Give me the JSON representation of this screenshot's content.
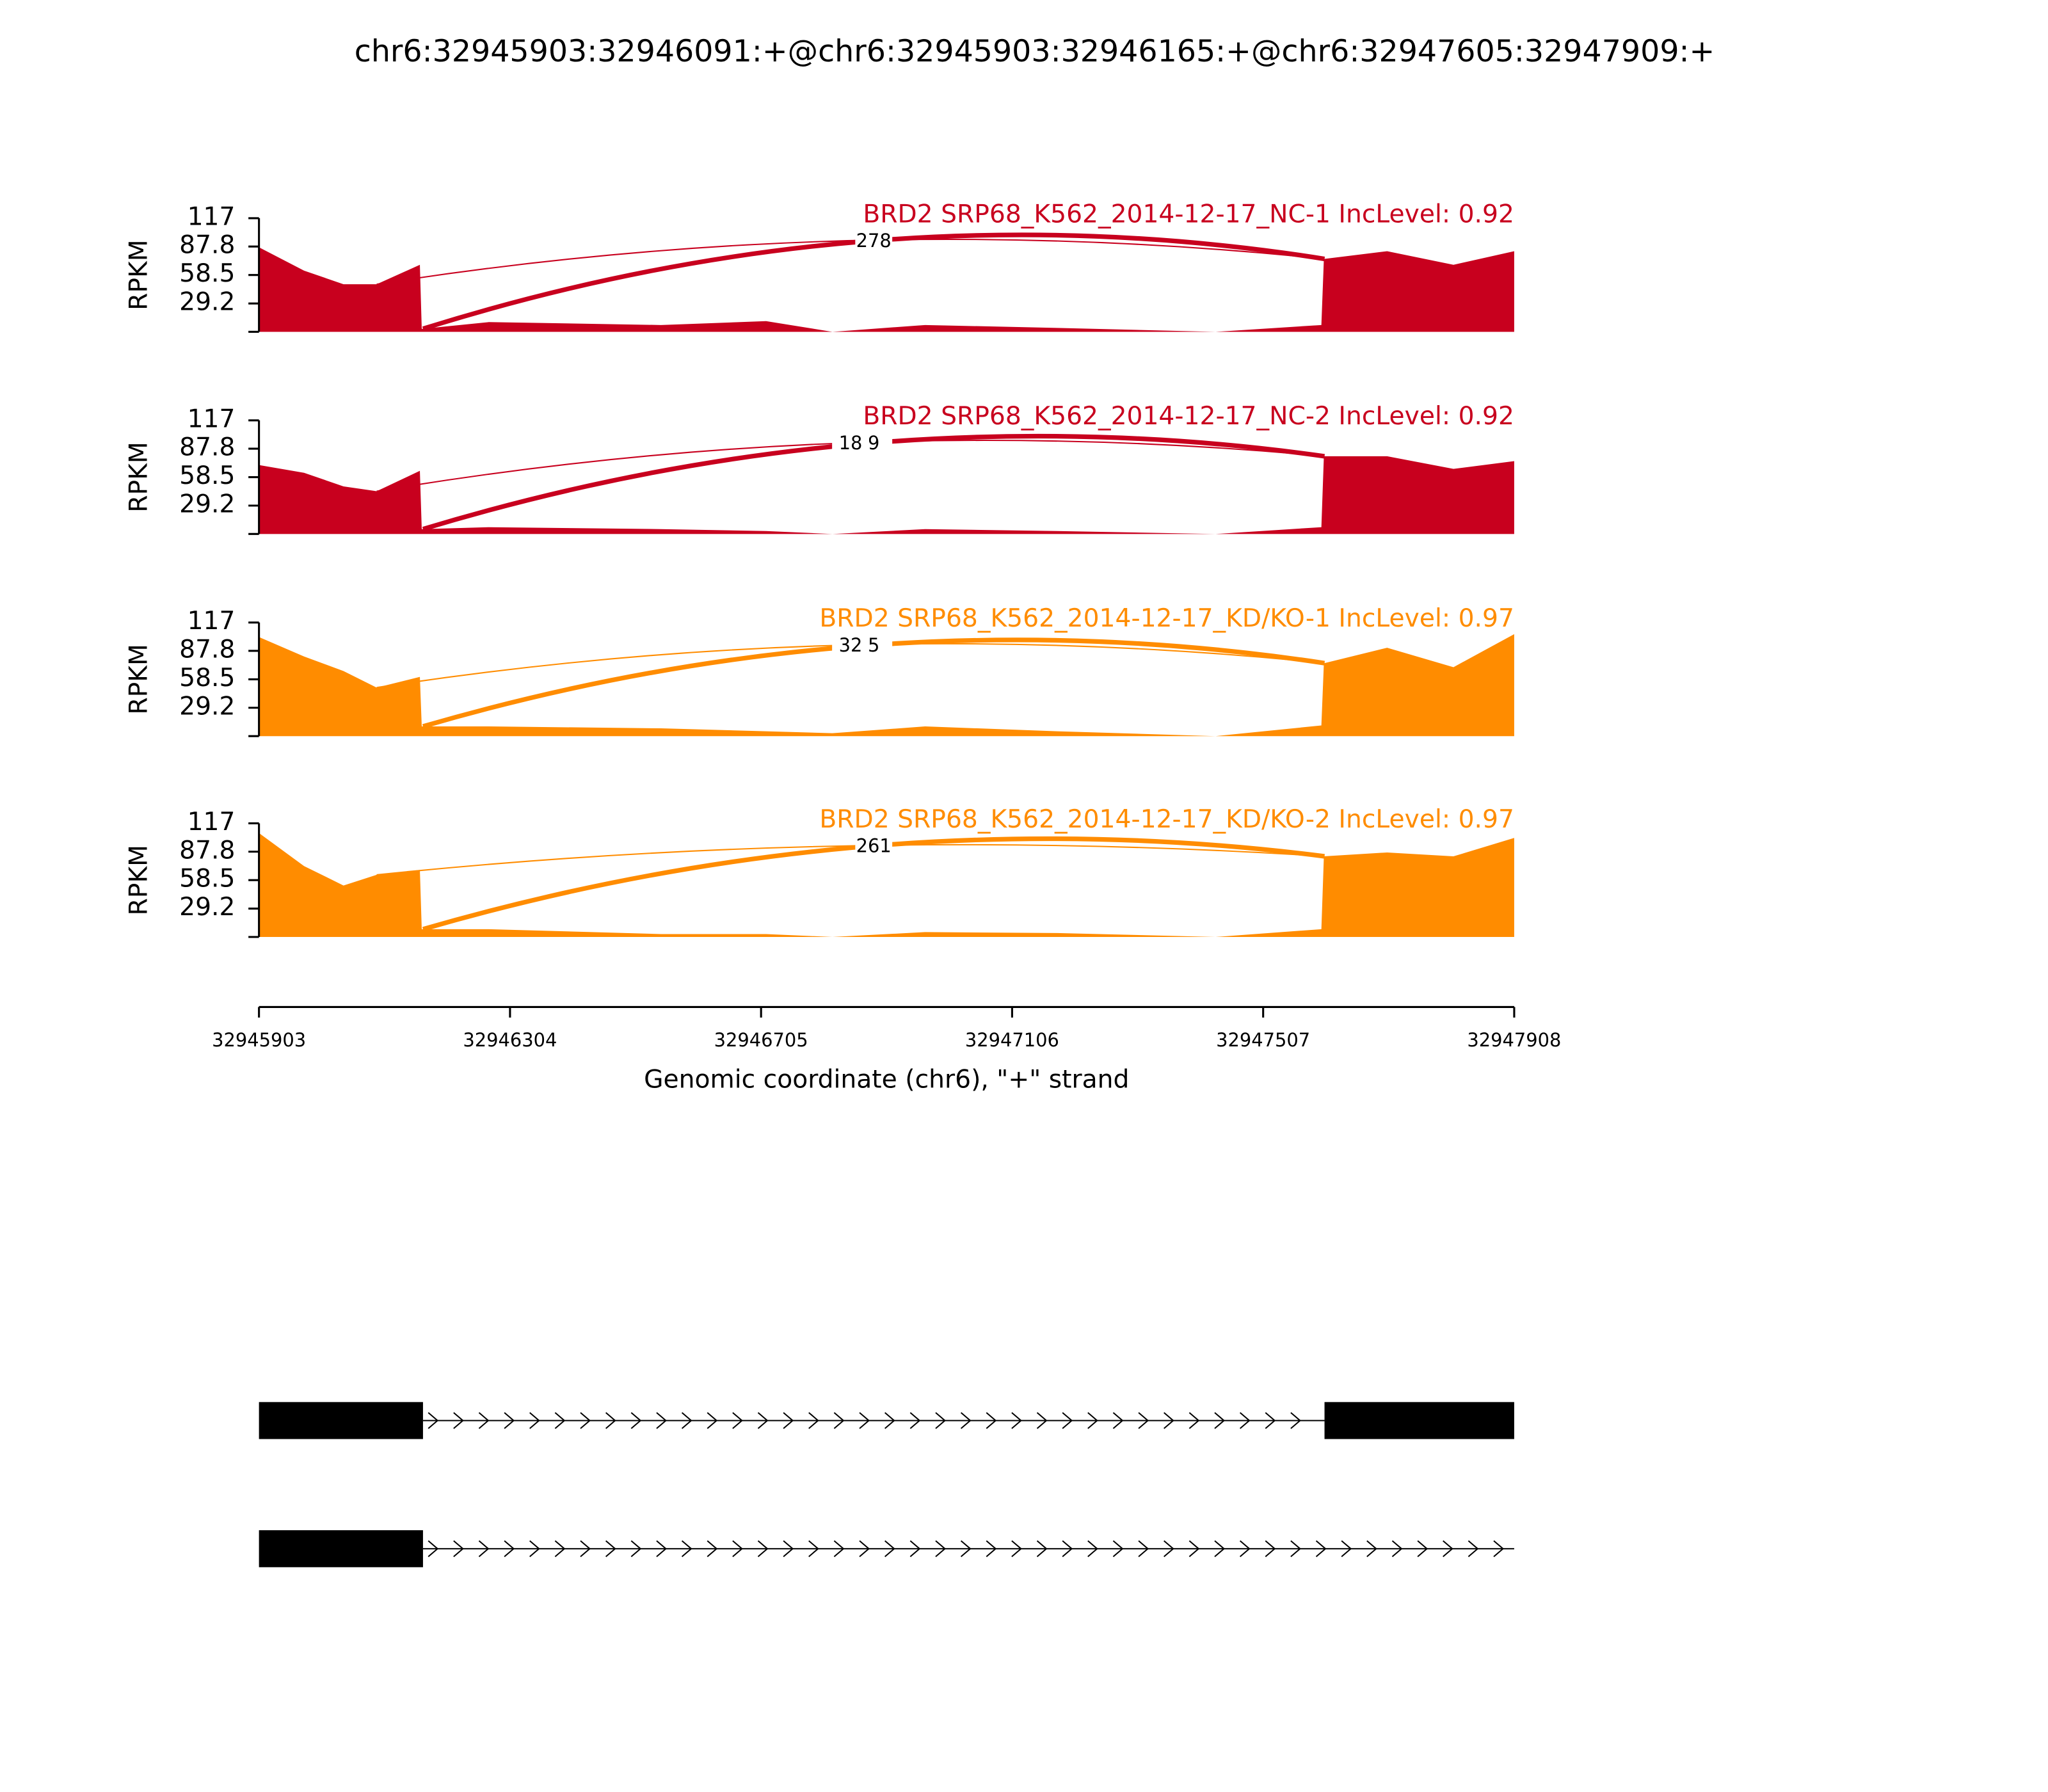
{
  "chart_data": {
    "type": "area",
    "title": "chr6:32945903:32946091:+@chr6:32945903:32946165:+@chr6:32947605:32947909:+",
    "ylabel": "RPKM",
    "xlabel": "Genomic coordinate (chr6), \"+\" strand",
    "x": [
      32945903,
      32945975,
      32946038,
      32946091,
      32946160,
      32946163,
      32946270,
      32946545,
      32946713,
      32946819,
      32946967,
      32947178,
      32947431,
      32947600,
      32947604,
      32947705,
      32947811,
      32947908
    ],
    "xlim": [
      32945903,
      32947908
    ],
    "xticks": [
      32945903,
      32946304,
      32946705,
      32947106,
      32947507,
      32947908
    ],
    "ylim": [
      0,
      117
    ],
    "yticks": [
      29.2,
      58.5,
      87.8,
      117
    ],
    "series": [
      {
        "name": "BRD2 SRP68_K562_2014-12-17_NC-1 IncLevel: 0.92",
        "color": "#c8001e",
        "values": [
          87,
          63,
          49,
          49,
          69,
          3,
          10,
          7,
          11,
          0,
          7,
          4,
          0,
          7,
          75,
          83,
          69,
          83
        ],
        "junctions": [
          {
            "start": 32946165,
            "end": 32947605,
            "count": 278
          },
          {
            "start": 32946091,
            "end": 32947605,
            "count": null
          }
        ]
      },
      {
        "name": "BRD2 SRP68_K562_2014-12-17_NC-2 IncLevel: 0.92",
        "color": "#c8001e",
        "values": [
          71,
          63,
          49,
          44,
          65,
          5,
          7,
          5,
          3,
          0,
          5,
          3,
          0,
          7,
          80,
          80,
          67,
          75
        ],
        "junctions": [
          {
            "start": 32946165,
            "end": 32947605,
            "count": 9
          },
          {
            "start": 32946091,
            "end": 32947605,
            "count": 18
          }
        ]
      },
      {
        "name": "BRD2 SRP68_K562_2014-12-17_KD/KO-1 IncLevel: 0.97",
        "color": "#ff8c00",
        "values": [
          102,
          82,
          67,
          50,
          61,
          10,
          10,
          8,
          5,
          3,
          10,
          5,
          0,
          11,
          75,
          91,
          71,
          105
        ],
        "junctions": [
          {
            "start": 32946165,
            "end": 32947605,
            "count": 5
          },
          {
            "start": 32946091,
            "end": 32947605,
            "count": 32
          }
        ]
      },
      {
        "name": "BRD2 SRP68_K562_2014-12-17_KD/KO-2 IncLevel: 0.97",
        "color": "#ff8c00",
        "values": [
          107,
          73,
          53,
          64,
          69,
          8,
          8,
          3,
          3,
          0,
          5,
          4,
          0,
          8,
          83,
          87,
          83,
          102
        ],
        "junctions": [
          {
            "start": 32946165,
            "end": 32947605,
            "count": 261
          },
          {
            "start": 32946091,
            "end": 32947605,
            "count": null
          }
        ]
      }
    ],
    "transcripts": [
      [
        [
          32945903,
          32946165
        ],
        [
          32947605,
          32947908
        ]
      ],
      [
        [
          32945903,
          32946165
        ]
      ]
    ]
  }
}
